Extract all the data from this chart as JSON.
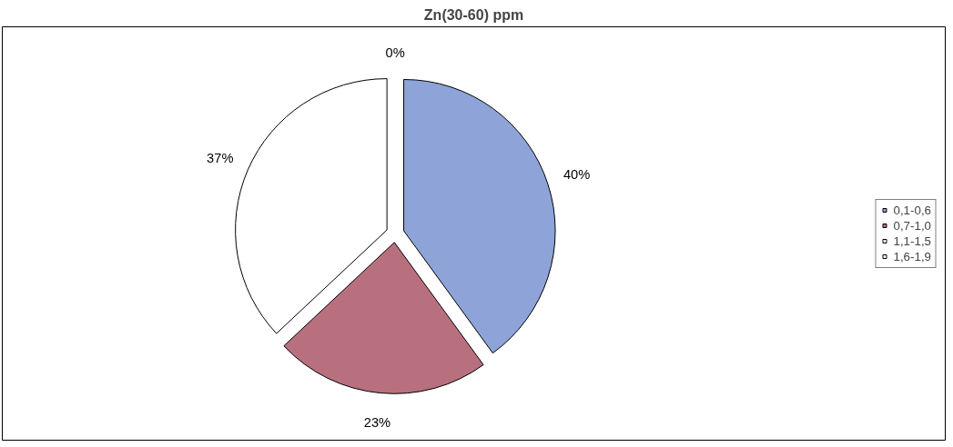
{
  "chart_data": {
    "type": "pie",
    "title": "Zn(30-60) ppm",
    "categories": [
      "0,1-0,6",
      "0,7-1,0",
      "1,1-1,5",
      "1,6-1,9"
    ],
    "values": [
      40,
      23,
      37,
      0
    ],
    "colors": [
      "#8ea4d8",
      "#b8707f",
      "#ffffff",
      "#ffffff"
    ],
    "value_labels": [
      "40%",
      "23%",
      "37%",
      "0%"
    ],
    "legend": "right"
  }
}
